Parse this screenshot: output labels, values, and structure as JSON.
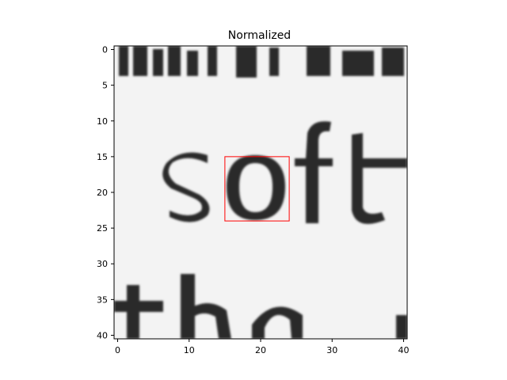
{
  "chart_data": {
    "type": "heatmap",
    "title": "Normalized",
    "colormap": "gray",
    "x_ticks": [
      0,
      10,
      20,
      30,
      40
    ],
    "y_ticks": [
      0,
      5,
      10,
      15,
      20,
      25,
      30,
      35,
      40
    ],
    "xlim": [
      -0.5,
      40.5
    ],
    "ylim": [
      40.5,
      -0.5
    ],
    "grid": false,
    "image_size": [
      41,
      41
    ],
    "image_description_text": "soft",
    "bounding_box": {
      "x0": 15,
      "y0": 15,
      "x1": 24,
      "y1": 24,
      "color": "#ff0000"
    }
  }
}
